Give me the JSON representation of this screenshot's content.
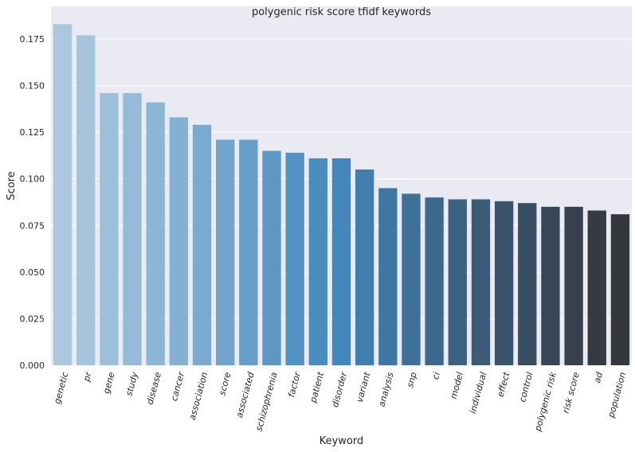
{
  "chart_data": {
    "type": "bar",
    "title": "polygenic risk score tfidf keywords",
    "xlabel": "Keyword",
    "ylabel": "Score",
    "ylim": [
      0,
      0.1925
    ],
    "yticks": [
      "0.000",
      "0.025",
      "0.050",
      "0.075",
      "0.100",
      "0.125",
      "0.150",
      "0.175"
    ],
    "grid": true,
    "categories": [
      "genetic",
      "pr",
      "gene",
      "study",
      "disease",
      "cancer",
      "association",
      "score",
      "associated",
      "schizophrenia",
      "factor",
      "patient",
      "disorder",
      "variant",
      "analysis",
      "snp",
      "ci",
      "model",
      "individual",
      "effect",
      "control",
      "polygenic risk",
      "risk score",
      "ad",
      "population"
    ],
    "values": [
      0.183,
      0.177,
      0.146,
      0.146,
      0.141,
      0.133,
      0.129,
      0.121,
      0.121,
      0.115,
      0.114,
      0.111,
      0.111,
      0.105,
      0.095,
      0.092,
      0.09,
      0.089,
      0.089,
      0.088,
      0.087,
      0.085,
      0.085,
      0.083,
      0.081
    ],
    "colors": [
      "#aac8de",
      "#a4c4dc",
      "#9dc0da",
      "#95bbd8",
      "#8db6d5",
      "#84b0d2",
      "#7aaace",
      "#71a4cb",
      "#679ec7",
      "#5d98c4",
      "#5392c1",
      "#4a8cbe",
      "#4386ba",
      "#417eae",
      "#3f77a3",
      "#3e7098",
      "#3d698d",
      "#3c6282",
      "#3b5b77",
      "#3a546c",
      "#394d62",
      "#384757",
      "#37414d",
      "#363b43",
      "#34383c"
    ]
  }
}
